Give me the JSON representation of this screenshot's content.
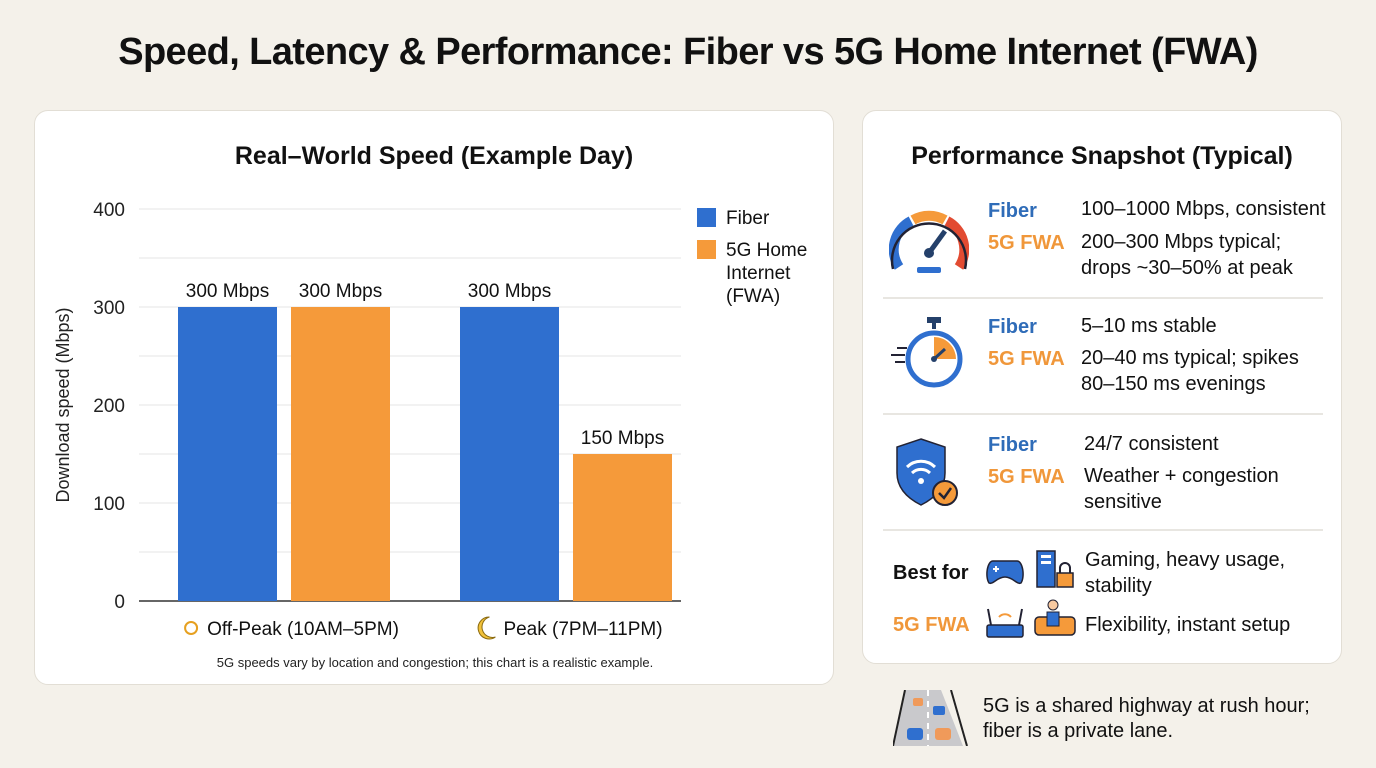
{
  "title": "Speed, Latency & Performance: Fiber vs 5G Home Internet (FWA)",
  "colors": {
    "fiber": "#2f6fcf",
    "fwa": "#f59a3a",
    "background": "#f4f1ea"
  },
  "chart_data": {
    "type": "bar",
    "title": "Real–World Speed (Example Day)",
    "xlabel": "",
    "ylabel": "Download speed (Mbps)",
    "ylim": [
      0,
      400
    ],
    "yticks": [
      0,
      100,
      200,
      300,
      400
    ],
    "grid": true,
    "legend": "right",
    "categories": [
      "Off-Peak (10AM–5PM)",
      "Peak (7PM–11PM)"
    ],
    "category_icons": [
      "sun-icon",
      "moon-icon"
    ],
    "series": [
      {
        "name": "Fiber",
        "values": [
          300,
          300
        ],
        "labels": [
          "300 Mbps",
          "300 Mbps"
        ]
      },
      {
        "name": "5G Home Internet (FWA)",
        "values": [
          300,
          150
        ],
        "labels": [
          "300 Mbps",
          "150 Mbps"
        ]
      }
    ],
    "footnote": "5G speeds vary by location and congestion; this chart is a realistic example."
  },
  "snapshot": {
    "title": "Performance Snapshot (Typical)",
    "fiber_label": "Fiber",
    "fwa_label": "5G FWA",
    "rows": [
      {
        "icon": "speedometer-icon",
        "fiber": "100–1000 Mbps, consistent",
        "fwa": [
          "200–300 Mbps typical;",
          "drops ~30–50% at peak"
        ]
      },
      {
        "icon": "stopwatch-icon",
        "fiber": "5–10 ms stable",
        "fwa": [
          "20–40 ms typical; spikes",
          "80–150 ms evenings"
        ]
      },
      {
        "icon": "shield-wifi-icon",
        "fiber": "24/7 consistent",
        "fwa": [
          "Weather + congestion",
          "sensitive"
        ]
      }
    ],
    "best_for": {
      "label": "Best for",
      "fiber": [
        "Gaming, heavy usage,",
        "stability"
      ],
      "fwa_label": "5G FWA",
      "fwa": "Flexibility, instant setup"
    }
  },
  "note": [
    "5G is a shared highway at rush hour;",
    "fiber is a private lane."
  ]
}
